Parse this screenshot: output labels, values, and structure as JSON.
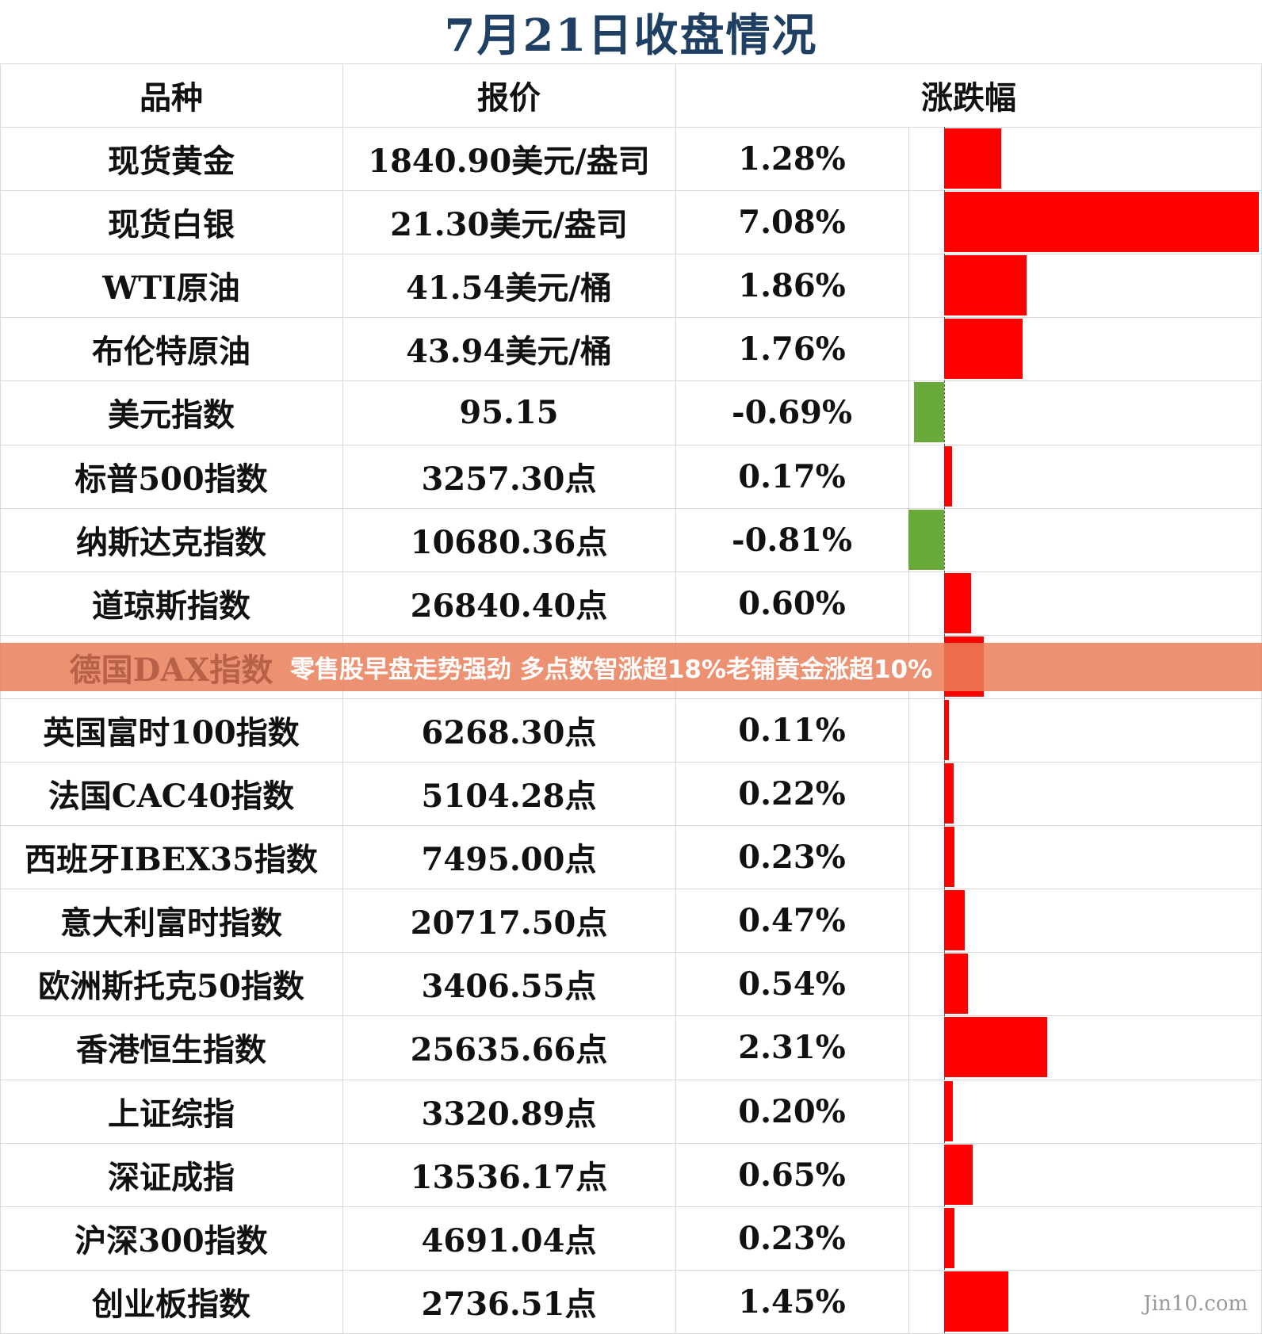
{
  "title": "7月21日收盘情况",
  "headers": {
    "name": "品种",
    "price": "报价",
    "change": "涨跌幅"
  },
  "colors": {
    "up": "#ff0000",
    "down": "#6aaa3a",
    "title": "#1f3f63",
    "banner": "#e97f5a"
  },
  "banner": {
    "text": "零售股早盘走势强劲 多点数智涨超18%老铺黄金涨超10%",
    "covered_label": "德国DAX指数"
  },
  "watermark": "Jin10.com",
  "chart_data": {
    "type": "table",
    "columns": [
      "品种",
      "报价",
      "涨跌幅"
    ],
    "rows": [
      {
        "name": "现货黄金",
        "price": "1840.90美元/盎司",
        "pct_label": "1.28%",
        "pct": 1.28
      },
      {
        "name": "现货白银",
        "price": "21.30美元/盎司",
        "pct_label": "7.08%",
        "pct": 7.08
      },
      {
        "name": "WTI原油",
        "price": "41.54美元/桶",
        "pct_label": "1.86%",
        "pct": 1.86
      },
      {
        "name": "布伦特原油",
        "price": "43.94美元/桶",
        "pct_label": "1.76%",
        "pct": 1.76
      },
      {
        "name": "美元指数",
        "price": "95.15",
        "pct_label": "-0.69%",
        "pct": -0.69
      },
      {
        "name": "标普500指数",
        "price": "3257.30点",
        "pct_label": "0.17%",
        "pct": 0.17
      },
      {
        "name": "纳斯达克指数",
        "price": "10680.36点",
        "pct_label": "-0.81%",
        "pct": -0.81
      },
      {
        "name": "道琼斯指数",
        "price": "26840.40点",
        "pct_label": "0.60%",
        "pct": 0.6
      },
      {
        "name": "",
        "price": "",
        "pct_label": "",
        "pct": 0.9
      },
      {
        "name": "英国富时100指数",
        "price": "6268.30点",
        "pct_label": "0.11%",
        "pct": 0.11
      },
      {
        "name": "法国CAC40指数",
        "price": "5104.28点",
        "pct_label": "0.22%",
        "pct": 0.22
      },
      {
        "name": "西班牙IBEX35指数",
        "price": "7495.00点",
        "pct_label": "0.23%",
        "pct": 0.23
      },
      {
        "name": "意大利富时指数",
        "price": "20717.50点",
        "pct_label": "0.47%",
        "pct": 0.47
      },
      {
        "name": "欧洲斯托克50指数",
        "price": "3406.55点",
        "pct_label": "0.54%",
        "pct": 0.54
      },
      {
        "name": "香港恒生指数",
        "price": "25635.66点",
        "pct_label": "2.31%",
        "pct": 2.31
      },
      {
        "name": "上证综指",
        "price": "3320.89点",
        "pct_label": "0.20%",
        "pct": 0.2
      },
      {
        "name": "深证成指",
        "price": "13536.17点",
        "pct_label": "0.65%",
        "pct": 0.65
      },
      {
        "name": "沪深300指数",
        "price": "4691.04点",
        "pct_label": "0.23%",
        "pct": 0.23
      },
      {
        "name": "创业板指数",
        "price": "2736.51点",
        "pct_label": "1.45%",
        "pct": 1.45
      }
    ],
    "xlim": [
      -0.81,
      7.08
    ]
  }
}
